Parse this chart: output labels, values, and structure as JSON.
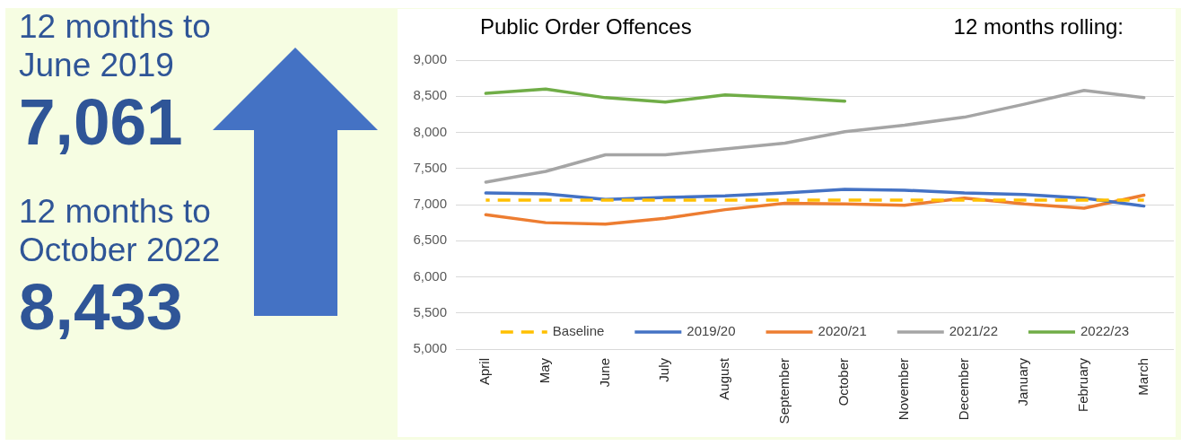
{
  "chart_data": [
    {
      "type": "other",
      "annotations": [
        "12 months to June 2019",
        "7,061",
        "12 months to October 2022",
        "8,433"
      ]
    },
    {
      "type": "line",
      "title": "Public Order Offences",
      "subtitle": "12 months rolling:",
      "categories": [
        "April",
        "May",
        "June",
        "July",
        "August",
        "September",
        "October",
        "November",
        "December",
        "January",
        "February",
        "March"
      ],
      "series": [
        {
          "name": "Baseline",
          "color": "#ffc000",
          "line_style": "dashed",
          "values": [
            7061,
            7061,
            7061,
            7061,
            7061,
            7061,
            7061,
            7061,
            7061,
            7061,
            7061,
            7061
          ]
        },
        {
          "name": "2019/20",
          "color": "#4472c4",
          "values": [
            7160,
            7150,
            7070,
            7100,
            7120,
            7160,
            7210,
            7200,
            7160,
            7140,
            7090,
            6980
          ]
        },
        {
          "name": "2020/21",
          "color": "#ed7d31",
          "values": [
            6860,
            6750,
            6730,
            6810,
            6930,
            7020,
            7010,
            6990,
            7090,
            7010,
            6950,
            7130
          ]
        },
        {
          "name": "2021/22",
          "color": "#a5a5a5",
          "values": [
            7310,
            7460,
            7690,
            7690,
            7770,
            7850,
            8010,
            8100,
            8210,
            8390,
            8580,
            8480
          ]
        },
        {
          "name": "2022/23",
          "color": "#70ad47",
          "values": [
            8540,
            8600,
            8480,
            8420,
            8520,
            8480,
            8433,
            null,
            null,
            null,
            null,
            null
          ]
        }
      ],
      "ylim": [
        5000,
        9000
      ],
      "yticks": [
        {
          "value": 5000,
          "label": "5,000"
        },
        {
          "value": 5500,
          "label": "5,500"
        },
        {
          "value": 6000,
          "label": "6,000"
        },
        {
          "value": 6500,
          "label": "6,500"
        },
        {
          "value": 7000,
          "label": "7,000"
        },
        {
          "value": 7500,
          "label": "7,500"
        },
        {
          "value": 8000,
          "label": "8,000"
        },
        {
          "value": 8500,
          "label": "8,500"
        },
        {
          "value": 9000,
          "label": "9,000"
        }
      ],
      "grid": "y",
      "legend": "bottom",
      "marker": "none"
    }
  ]
}
